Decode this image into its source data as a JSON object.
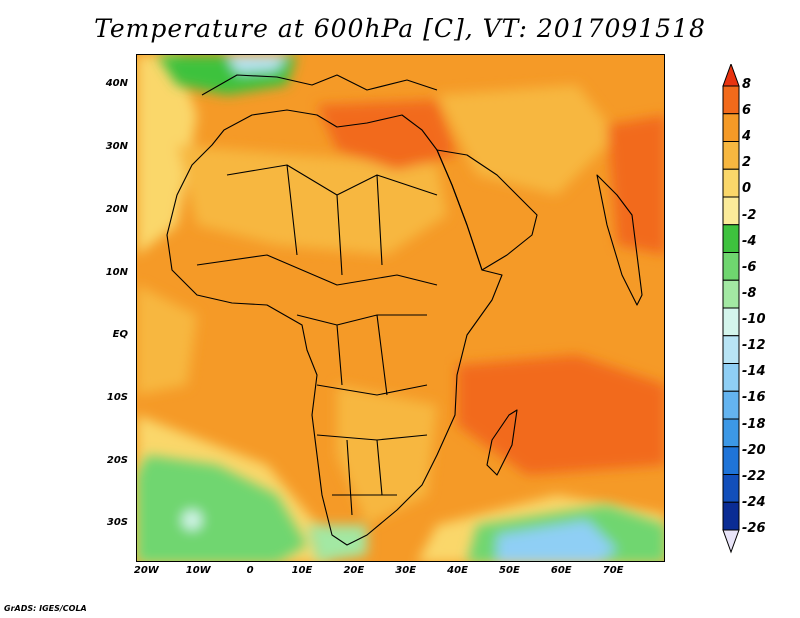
{
  "title": "Temperature at 600hPa [C], VT: 2017091518",
  "credit": "GrADS: IGES/COLA",
  "map": {
    "lon_range": [
      -22,
      80
    ],
    "lat_range": [
      -36,
      45
    ],
    "lat_ticks": [
      {
        "value": 40,
        "label": "40N"
      },
      {
        "value": 30,
        "label": "30N"
      },
      {
        "value": 20,
        "label": "20N"
      },
      {
        "value": 10,
        "label": "10N"
      },
      {
        "value": 0,
        "label": "EQ"
      },
      {
        "value": -10,
        "label": "10S"
      },
      {
        "value": -20,
        "label": "20S"
      },
      {
        "value": -30,
        "label": "30S"
      }
    ],
    "lon_ticks": [
      {
        "value": -20,
        "label": "20W"
      },
      {
        "value": -10,
        "label": "10W"
      },
      {
        "value": 0,
        "label": "0"
      },
      {
        "value": 10,
        "label": "10E"
      },
      {
        "value": 20,
        "label": "20E"
      },
      {
        "value": 30,
        "label": "30E"
      },
      {
        "value": 40,
        "label": "40E"
      },
      {
        "value": 50,
        "label": "50E"
      },
      {
        "value": 60,
        "label": "60E"
      },
      {
        "value": 70,
        "label": "70E"
      }
    ]
  },
  "colorbar": {
    "levels": [
      "8",
      "6",
      "4",
      "2",
      "0",
      "-2",
      "-4",
      "-6",
      "-8",
      "-10",
      "-12",
      "-14",
      "-16",
      "-18",
      "-20",
      "-22",
      "-24",
      "-26"
    ],
    "colors": [
      "#e8330f",
      "#f26a1b",
      "#f59a27",
      "#f7b740",
      "#fad76a",
      "#fbeb9a",
      "#3ec23e",
      "#6fd66f",
      "#a3e8a3",
      "#d4f5ec",
      "#b8e4f5",
      "#8fcff5",
      "#64b4f0",
      "#3c98e6",
      "#1f74d8",
      "#124fbb",
      "#0a2c94",
      "#1a1470"
    ]
  }
}
